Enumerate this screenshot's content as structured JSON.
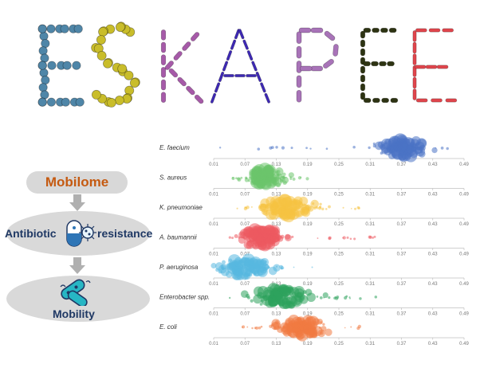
{
  "title_letters": [
    {
      "char": "E",
      "color": "#4f86a8"
    },
    {
      "char": "S",
      "color": "#c9bd2a"
    },
    {
      "char": "K",
      "color": "#a65aa8"
    },
    {
      "char": "A",
      "color": "#3d28b4"
    },
    {
      "char": "P",
      "color": "#a873b8"
    },
    {
      "char": "E",
      "color": "#2d3312"
    },
    {
      "char": "E",
      "color": "#e0454c"
    }
  ],
  "flow": {
    "mobilome": "Mobilome",
    "antibiotic": "Antibiotic",
    "resistance": "resistance",
    "mobility": "Mobility"
  },
  "icons": {
    "pill": "pill-icon",
    "bacteria": "bacteria-icon",
    "virus": "virus-icon",
    "arrow": "arrow-down-icon"
  },
  "chart_data": {
    "type": "beeswarm",
    "ticks": [
      "0.01",
      "0.07",
      "0.13",
      "0.19",
      "0.25",
      "0.31",
      "0.37",
      "0.43",
      "0.49"
    ],
    "xlim": [
      0.01,
      0.49
    ],
    "series": [
      {
        "name": "E. faecium",
        "color": "#4a72c4",
        "center": 0.37,
        "spread": 0.05,
        "tail_min": 0.02,
        "tail_max": 0.46
      },
      {
        "name": "S. aureus",
        "color": "#6cc46c",
        "center": 0.11,
        "spread": 0.035,
        "tail_min": 0.04,
        "tail_max": 0.2
      },
      {
        "name": "K. pneumoniae",
        "color": "#f6c242",
        "center": 0.15,
        "spread": 0.05,
        "tail_min": 0.04,
        "tail_max": 0.29
      },
      {
        "name": "A. baumannii",
        "color": "#ec5a60",
        "center": 0.1,
        "spread": 0.04,
        "tail_min": 0.02,
        "tail_max": 0.32
      },
      {
        "name": "P. aeruginosa",
        "color": "#58b8e0",
        "center": 0.07,
        "spread": 0.05,
        "tail_min": 0.02,
        "tail_max": 0.22
      },
      {
        "name": "Enterobacter spp.",
        "color": "#2ea35c",
        "center": 0.14,
        "spread": 0.06,
        "tail_min": 0.04,
        "tail_max": 0.33
      },
      {
        "name": "E. coli",
        "color": "#f07a42",
        "center": 0.18,
        "spread": 0.05,
        "tail_min": 0.06,
        "tail_max": 0.29
      }
    ]
  }
}
